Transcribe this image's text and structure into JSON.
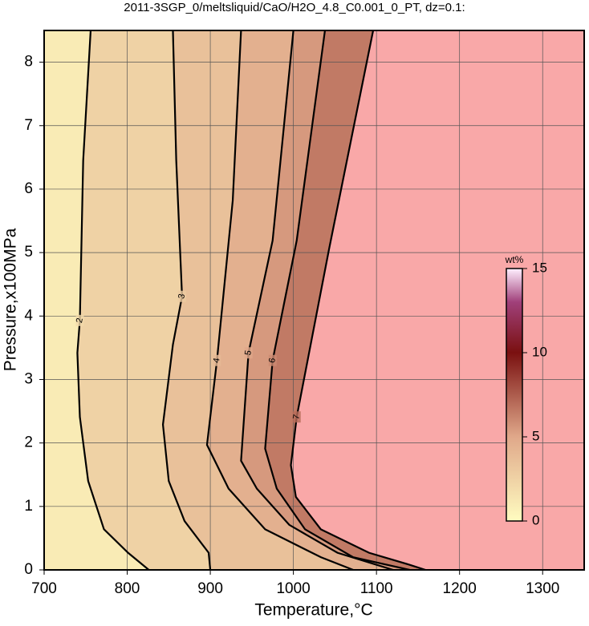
{
  "chart_data": {
    "type": "contour",
    "title": "2011-3SGP_0/meltsliquid/CaO/H2O_4.8_C0.001_0_PT, dz=0.1:",
    "x_label": "Temperature,°C",
    "y_label": "Pressure,x100MPa",
    "xlim": [
      700,
      1350
    ],
    "ylim": [
      0,
      8.5
    ],
    "xticks": [
      700,
      800,
      900,
      1000,
      1100,
      1200,
      1300
    ],
    "yticks": [
      0,
      1,
      2,
      3,
      4,
      5,
      6,
      7,
      8
    ],
    "grid": true,
    "contours": [
      {
        "level": 2,
        "x": [
          756,
          747,
          743,
          740,
          743,
          753,
          772,
          801,
          826
        ],
        "y": [
          8.5,
          6.45,
          3.93,
          3.42,
          2.41,
          1.4,
          0.64,
          0.27,
          0
        ]
      },
      {
        "level": 3,
        "x": [
          855,
          859,
          866,
          855,
          843,
          850,
          869,
          898,
          900
        ],
        "y": [
          8.5,
          6.45,
          4.31,
          3.55,
          2.29,
          1.4,
          0.77,
          0.27,
          0
        ]
      },
      {
        "level": 4,
        "x": [
          937,
          927,
          908,
          896,
          922,
          966,
          1033,
          1072
        ],
        "y": [
          8.5,
          5.82,
          3.3,
          1.97,
          1.28,
          0.64,
          0.2,
          0
        ]
      },
      {
        "level": 5,
        "x": [
          1000,
          975,
          946,
          937,
          956,
          995,
          1053,
          1120
        ],
        "y": [
          8.5,
          5.19,
          3.42,
          1.72,
          1.28,
          0.71,
          0.27,
          0
        ]
      },
      {
        "level": 6,
        "x": [
          1038,
          1004,
          975,
          966,
          980,
          1014,
          1072,
          1140
        ],
        "y": [
          8.5,
          5.19,
          3.3,
          1.91,
          1.28,
          0.64,
          0.2,
          0
        ]
      },
      {
        "level": 7,
        "x": [
          1096,
          1043,
          1004,
          997,
          1003,
          1033,
          1091,
          1140,
          1159
        ],
        "y": [
          8.5,
          5.06,
          2.41,
          1.65,
          1.15,
          0.64,
          0.27,
          0.08,
          0
        ]
      }
    ],
    "fill_beyond_color": "#f9a8a8",
    "colorbar": {
      "label": "wt%",
      "clim": [
        0,
        15
      ],
      "ticks": [
        0,
        5,
        10,
        15
      ]
    }
  }
}
